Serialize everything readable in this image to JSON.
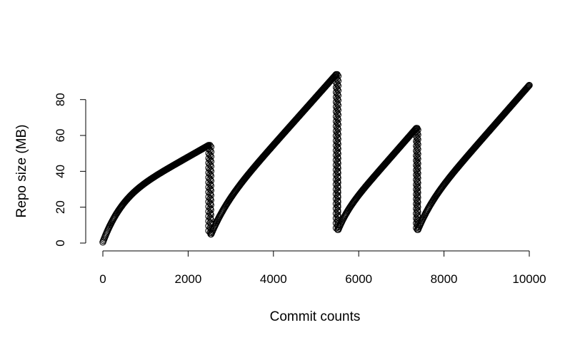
{
  "chart_data": {
    "type": "scatter",
    "title": "",
    "xlabel": "Commit counts",
    "ylabel": "Repo size (MB)",
    "xlim": [
      0,
      10000
    ],
    "ylim": [
      0,
      94
    ],
    "x_ticks": [
      0,
      2000,
      4000,
      6000,
      8000,
      10000
    ],
    "y_ticks": [
      0,
      20,
      40,
      60,
      80
    ],
    "x_tick_labels": [
      "0",
      "2000",
      "4000",
      "6000",
      "8000",
      "10000"
    ],
    "y_tick_labels": [
      "0",
      "20",
      "40",
      "60",
      "80"
    ],
    "grid": false,
    "legend": "none",
    "marker": "open-circle",
    "color": "#000000",
    "segments": [
      {
        "x_start": 0,
        "x_end": 2480,
        "y_start": 0.5,
        "y_end": 54.5,
        "curve": "concave"
      },
      {
        "x_start": 2480,
        "x_end": 2540,
        "y_start": 54.5,
        "y_end": 5,
        "curve": "drop"
      },
      {
        "x_start": 2540,
        "x_end": 5470,
        "y_start": 5,
        "y_end": 94,
        "curve": "mild-concave"
      },
      {
        "x_start": 5470,
        "x_end": 5520,
        "y_start": 94,
        "y_end": 7.5,
        "curve": "drop"
      },
      {
        "x_start": 5520,
        "x_end": 7350,
        "y_start": 7.5,
        "y_end": 64,
        "curve": "mild-concave"
      },
      {
        "x_start": 7350,
        "x_end": 7390,
        "y_start": 64,
        "y_end": 7.5,
        "curve": "drop"
      },
      {
        "x_start": 7390,
        "x_end": 10000,
        "y_start": 7.5,
        "y_end": 88,
        "curve": "mild-concave"
      }
    ]
  }
}
